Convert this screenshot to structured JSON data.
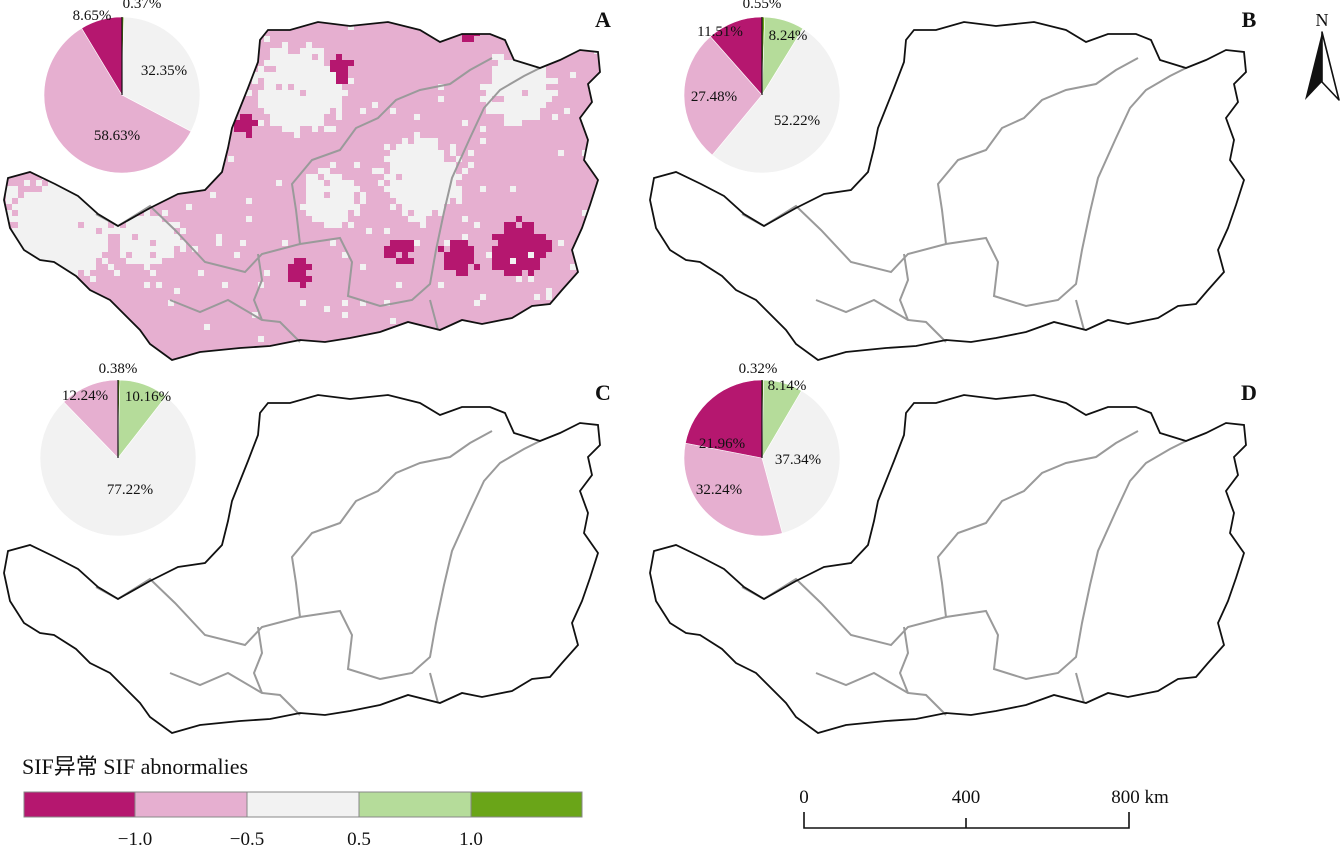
{
  "colors": {
    "strong_neg": "#B5176F",
    "weak_neg": "#E6AFD0",
    "normal": "#F2F2F2",
    "weak_pos": "#B5DC9A",
    "strong_pos": "#6AA518",
    "outline": "#111111",
    "province": "#9A9A9A"
  },
  "panels": [
    {
      "letter": "A",
      "pie": [
        {
          "label": "0.37%",
          "value": 0.37,
          "class": "strong_pos"
        },
        {
          "label": "32.35%",
          "value": 32.35,
          "class": "normal"
        },
        {
          "label": "58.63%",
          "value": 58.63,
          "class": "weak_neg"
        },
        {
          "label": "8.65%",
          "value": 8.65,
          "class": "strong_neg"
        }
      ]
    },
    {
      "letter": "B",
      "pie": [
        {
          "label": "0.55%",
          "value": 0.55,
          "class": "strong_pos"
        },
        {
          "label": "8.24%",
          "value": 8.24,
          "class": "weak_pos"
        },
        {
          "label": "52.22%",
          "value": 52.22,
          "class": "normal"
        },
        {
          "label": "27.48%",
          "value": 27.48,
          "class": "weak_neg"
        },
        {
          "label": "11.51%",
          "value": 11.51,
          "class": "strong_neg"
        }
      ]
    },
    {
      "letter": "C",
      "pie": [
        {
          "label": "0.38%",
          "value": 0.38,
          "class": "strong_pos"
        },
        {
          "label": "10.16%",
          "value": 10.16,
          "class": "weak_pos"
        },
        {
          "label": "77.22%",
          "value": 77.22,
          "class": "normal"
        },
        {
          "label": "12.24%",
          "value": 12.24,
          "class": "weak_neg"
        }
      ]
    },
    {
      "letter": "D",
      "pie": [
        {
          "label": "0.32%",
          "value": 0.32,
          "class": "strong_pos"
        },
        {
          "label": "8.14%",
          "value": 8.14,
          "class": "weak_pos"
        },
        {
          "label": "37.34%",
          "value": 37.34,
          "class": "normal"
        },
        {
          "label": "32.24%",
          "value": 32.24,
          "class": "weak_neg"
        },
        {
          "label": "21.96%",
          "value": 21.96,
          "class": "strong_neg"
        }
      ]
    }
  ],
  "legend": {
    "title": "SIF异常 SIF abnormalies",
    "classes": [
      "strong_neg",
      "weak_neg",
      "normal",
      "weak_pos",
      "strong_pos"
    ],
    "ticks": [
      "−1.0",
      "−0.5",
      "0.5",
      "1.0"
    ]
  },
  "scalebar": {
    "labels": [
      "0",
      "400",
      "800 km"
    ]
  },
  "north": {
    "label": "N"
  }
}
